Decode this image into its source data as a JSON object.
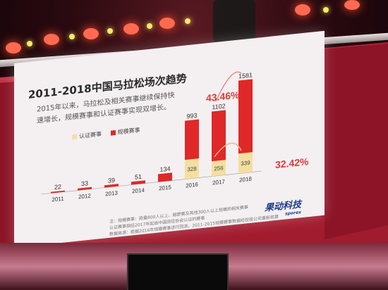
{
  "slide": {
    "title": "2011-2018中国马拉松场次趋势",
    "description_line1": "2015年以来，马拉松及相关赛事继续保持快",
    "description_line2": "速增长，规模赛事和认证赛事实现双增长。",
    "legend_certified": "认证赛事",
    "legend_scale": "规模赛事",
    "growth_2017": "43.46%",
    "growth_2018": "32.42%",
    "note_line1": "注：规模赛事：跑量800人以上、越野赛及其他300人以上规模的相关赛事",
    "note_line2": "认证赛事指经2017年起由中国田径协会认证的赛事",
    "note_line3": "数据来源：根据2016年规模赛事进行回测，2011-2015规模赛事数据经控股公司重新核算",
    "logo": "果动科技",
    "logo_sub": "sporex"
  },
  "colors": {
    "scale_bar": "#e02828",
    "certified_bar": "#f3dfa0",
    "growth_text": "#e03a3a",
    "title": "#2a2a2a"
  },
  "chart_data": {
    "type": "bar",
    "title": "2011-2018中国马拉松场次趋势",
    "categories": [
      "2011",
      "2012",
      "2013",
      "2014",
      "2015",
      "2016",
      "2017",
      "2018"
    ],
    "series": [
      {
        "name": "认证赛事",
        "values": [
          0,
          0,
          0,
          0,
          0,
          328,
          256,
          339
        ]
      },
      {
        "name": "规模赛事",
        "values": [
          22,
          33,
          39,
          51,
          134,
          993,
          1102,
          1581
        ]
      }
    ],
    "stacked": false,
    "ylim": [
      0,
      1700
    ],
    "grid": false,
    "legend": "left",
    "annotations": [
      "43.46%",
      "32.42%"
    ]
  }
}
